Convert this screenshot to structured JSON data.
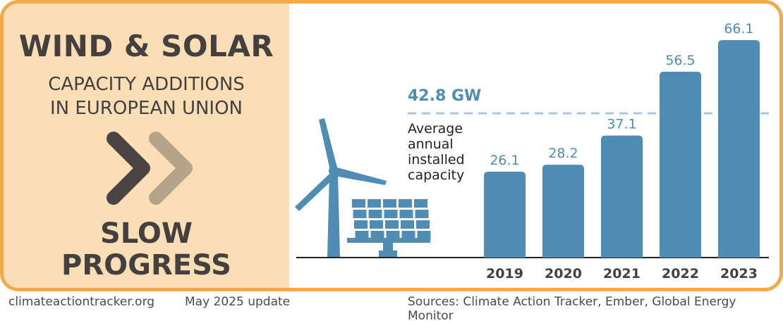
{
  "header": {
    "title": "WIND & SOLAR",
    "subtitle_line1": "CAPACITY ADDITIONS",
    "subtitle_line2": "IN EUROPEAN UNION",
    "status_line1": "SLOW",
    "status_line2": "PROGRESS",
    "status_icon": "double-chevron-right-icon"
  },
  "footer": {
    "website": "climateactiontracker.org",
    "update": "May 2025 update",
    "sources": "Sources: Climate Action Tracker, Ember, Global Energy Monitor"
  },
  "colors": {
    "frame": "#f2ab48",
    "panel": "#fadeb5",
    "bar": "#4f8db4",
    "avg_line": "#a9c8dd",
    "text_dark": "#444040",
    "chevron_dark": "#4a4444",
    "chevron_light": "#b5a48a"
  },
  "icons": [
    "wind-turbine-icon",
    "solar-panel-icon"
  ],
  "chart_data": {
    "type": "bar",
    "title": "Wind & Solar capacity additions in European Union",
    "categories": [
      "2019",
      "2020",
      "2021",
      "2022",
      "2023"
    ],
    "values": [
      26.1,
      28.2,
      37.1,
      56.5,
      66.1
    ],
    "value_labels": [
      "26.1",
      "28.2",
      "37.1",
      "56.5",
      "66.1"
    ],
    "unit": "GW",
    "ylim": [
      0,
      66.1
    ],
    "grid": false,
    "reference_line": {
      "value": 42.8,
      "label": "42.8 GW",
      "description": [
        "Average",
        "annual",
        "installed",
        "capacity"
      ]
    }
  }
}
